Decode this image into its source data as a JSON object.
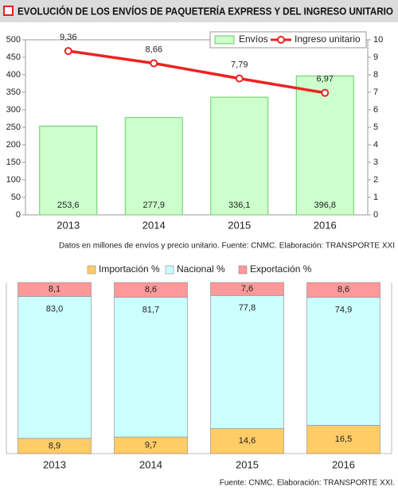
{
  "chart_data": [
    {
      "type": "combo",
      "title": "EVOLUCIÓN DE LOS ENVÍOS DE PAQUETERÍA EXPRESS Y DEL INGRESO UNITARIO",
      "categories": [
        "2013",
        "2014",
        "2015",
        "2016"
      ],
      "series": [
        {
          "name": "Envíos",
          "type": "bar",
          "color": "#ccffcc",
          "values": [
            253.6,
            277.9,
            336.1,
            396.8
          ],
          "value_labels": [
            "253,6",
            "277,9",
            "336,1",
            "396,8"
          ]
        },
        {
          "name": "Ingreso unitario",
          "type": "line",
          "axis": "y2",
          "color": "#ee2222",
          "values": [
            9.36,
            8.66,
            7.79,
            6.97
          ],
          "value_labels": [
            "9,36",
            "8,66",
            "7,79",
            "6,97"
          ]
        }
      ],
      "ylim": [
        0,
        500
      ],
      "yticks": [
        0,
        50,
        100,
        150,
        200,
        250,
        300,
        350,
        400,
        450,
        500
      ],
      "y2lim": [
        0,
        10
      ],
      "y2ticks": [
        0,
        1,
        2,
        3,
        4,
        5,
        6,
        7,
        8,
        9,
        10
      ],
      "legend": "top-right",
      "note": "Datos en millones de envíos y precio unitario. Fuente: CNMC. Elaboración: TRANSPORTE XXI"
    },
    {
      "type": "stacked-bar",
      "categories": [
        "2013",
        "2014",
        "2015",
        "2016"
      ],
      "series": [
        {
          "name": "Importación %",
          "color": "#ffcc66",
          "values": [
            8.9,
            9.7,
            14.6,
            16.5
          ],
          "value_labels": [
            "8,9",
            "9,7",
            "14,6",
            "16,5"
          ]
        },
        {
          "name": "Nacional %",
          "color": "#ccffff",
          "values": [
            83.0,
            81.7,
            77.8,
            74.9
          ],
          "value_labels": [
            "83,0",
            "81,7",
            "77,8",
            "74,9"
          ]
        },
        {
          "name": "Exportación %",
          "color": "#ff9999",
          "values": [
            8.1,
            8.6,
            7.6,
            8.6
          ],
          "value_labels": [
            "8,1",
            "8,6",
            "7,6",
            "8,6"
          ]
        }
      ],
      "ylim": [
        0,
        100
      ],
      "legend": "top",
      "note": "Fuente: CNMC. Elaboración: TRANSPORTE XXI."
    }
  ]
}
